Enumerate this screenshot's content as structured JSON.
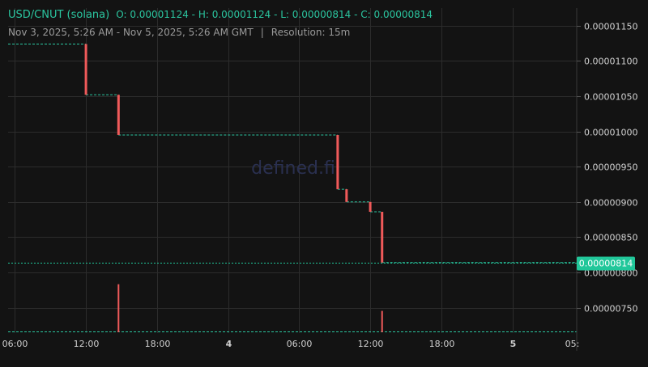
{
  "header": {
    "symbol": "USD/CNUT (solana)",
    "open_label": "O:",
    "open": "0.00001124",
    "high_label": "H:",
    "high": "0.00001124",
    "low_label": "L:",
    "low": "0.00000814",
    "close_label": "C:",
    "close": "0.00000814",
    "range": "Nov 3, 2025, 5:26 AM - Nov 5, 2025, 5:26 AM GMT",
    "separator": "|",
    "resolution": "Resolution: 15m"
  },
  "watermark": "defined.fi",
  "colors": {
    "background": "#131313",
    "grid": "#2c2c2c",
    "price_line": "#2bc6a0",
    "down_candle": "#f05a5a",
    "last_price_badge": "#21c79a",
    "axis_text": "#d0d0d0"
  },
  "chart_data": {
    "type": "candlestick",
    "x_ticks": [
      "06:00",
      "12:00",
      "18:00",
      "4",
      "06:00",
      "12:00",
      "18:00",
      "5",
      "05:"
    ],
    "x_tick_hours": [
      6,
      12,
      18,
      24,
      30,
      36,
      42,
      48,
      53
    ],
    "y_ticks": [
      "0.00001150",
      "0.00001100",
      "0.00001050",
      "0.00001000",
      "0.00000950",
      "0.00000900",
      "0.00000850",
      "0.00000800",
      "0.00000750"
    ],
    "y_tick_values": [
      1.15e-05,
      1.1e-05,
      1.05e-05,
      1e-05,
      9.5e-06,
      9e-06,
      8.5e-06,
      8e-06,
      7.5e-06
    ],
    "ylim": [
      7.14e-06,
      1.175e-05
    ],
    "x_range_hours": [
      5.43,
      53.43
    ],
    "last_price_label": "0.00000814",
    "last_price": 8.14e-06,
    "price_steps": [
      {
        "t0": 5.43,
        "t1": 12.0,
        "price": 1.124e-05
      },
      {
        "t0": 12.0,
        "t1": 14.75,
        "price": 1.052e-05
      },
      {
        "t0": 14.75,
        "t1": 33.25,
        "price": 9.95e-06
      },
      {
        "t0": 33.25,
        "t1": 34.0,
        "price": 9.18e-06
      },
      {
        "t0": 34.0,
        "t1": 36.0,
        "price": 9e-06
      },
      {
        "t0": 36.0,
        "t1": 37.0,
        "price": 8.86e-06
      },
      {
        "t0": 37.0,
        "t1": 53.43,
        "price": 8.14e-06
      }
    ],
    "candles": [
      {
        "t": 12.0,
        "open": 1.124e-05,
        "close": 1.052e-05
      },
      {
        "t": 14.75,
        "open": 1.052e-05,
        "close": 9.95e-06
      },
      {
        "t": 33.25,
        "open": 9.95e-06,
        "close": 9.18e-06
      },
      {
        "t": 34.0,
        "open": 9.18e-06,
        "close": 9e-06
      },
      {
        "t": 36.0,
        "open": 9e-06,
        "close": 8.86e-06
      },
      {
        "t": 37.0,
        "open": 8.86e-06,
        "close": 8.14e-06
      }
    ],
    "volume_bars": [
      {
        "t": 14.75,
        "level": 0.9
      },
      {
        "t": 37.0,
        "level": 0.4
      }
    ]
  }
}
